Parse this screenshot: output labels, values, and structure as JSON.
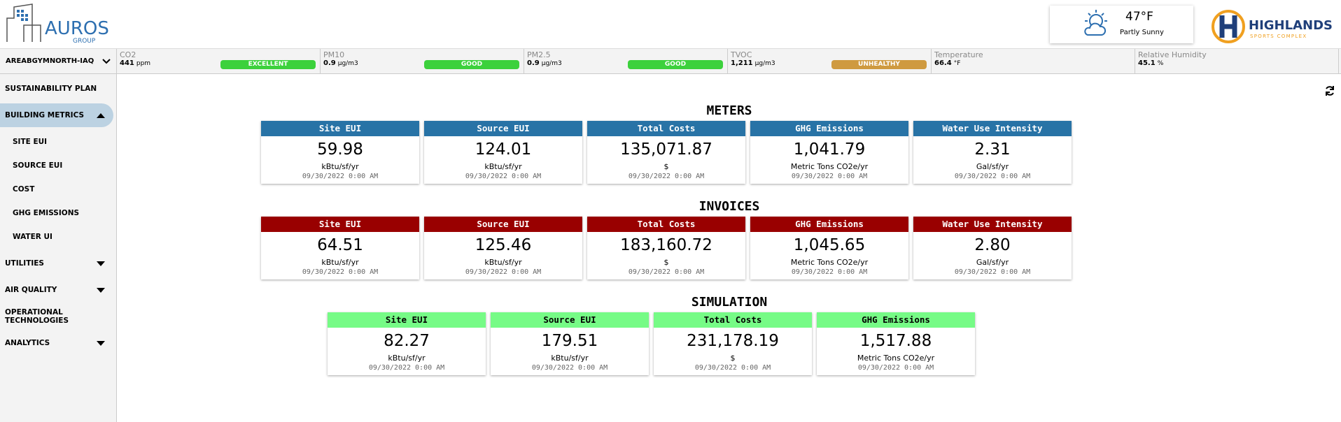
{
  "header": {
    "logo_text": "AUROS",
    "logo_sub": "GROUP",
    "weather": {
      "temp": "47°F",
      "condition": "Partly Sunny"
    },
    "brand": "HIGHLANDS",
    "brand_sub": "SPORTS COMPLEX"
  },
  "sensor_bar": {
    "location": "AREABGYMNORTH-IAQ",
    "sensors": [
      {
        "label": "CO2",
        "value": "441",
        "unit": "ppm",
        "status": "EXCELLENT",
        "status_color": "#3cd13c"
      },
      {
        "label": "PM10",
        "value": "0.9",
        "unit": "µg/m3",
        "status": "GOOD",
        "status_color": "#3cd13c"
      },
      {
        "label": "PM2.5",
        "value": "0.9",
        "unit": "µg/m3",
        "status": "GOOD",
        "status_color": "#3cd13c"
      },
      {
        "label": "TVOC",
        "value": "1,211",
        "unit": "µg/m3",
        "status": "UNHEALTHY",
        "status_color": "#cf9a40"
      },
      {
        "label": "Temperature",
        "value": "66.4",
        "unit": "°F"
      },
      {
        "label": "Relative Humidity",
        "value": "45.1",
        "unit": "%"
      }
    ]
  },
  "sidebar": {
    "items": [
      {
        "label": "SUSTAINABILITY PLAN"
      },
      {
        "label": "BUILDING METRICS",
        "active": true,
        "caret": "up",
        "children": [
          "SITE EUI",
          "SOURCE EUI",
          "COST",
          "GHG EMISSIONS",
          "WATER UI"
        ]
      },
      {
        "label": "UTILITIES",
        "caret": "down"
      },
      {
        "label": "AIR QUALITY",
        "caret": "down"
      },
      {
        "label": "OPERATIONAL TECHNOLOGIES"
      },
      {
        "label": "ANALYTICS",
        "caret": "down"
      }
    ]
  },
  "sections": [
    {
      "title": "METERS",
      "color": "#2873a6",
      "text_color": "#ffffff",
      "cards": [
        {
          "title": "Site EUI",
          "value": "59.98",
          "unit": "kBtu/sf/yr",
          "date": "09/30/2022 0:00 AM"
        },
        {
          "title": "Source EUI",
          "value": "124.01",
          "unit": "kBtu/sf/yr",
          "date": "09/30/2022 0:00 AM"
        },
        {
          "title": "Total Costs",
          "value": "135,071.87",
          "unit": "$",
          "date": "09/30/2022 0:00 AM"
        },
        {
          "title": "GHG Emissions",
          "value": "1,041.79",
          "unit": "Metric Tons CO2e/yr",
          "date": "09/30/2022 0:00 AM"
        },
        {
          "title": "Water Use Intensity",
          "value": "2.31",
          "unit": "Gal/sf/yr",
          "date": "09/30/2022 0:00 AM"
        }
      ]
    },
    {
      "title": "INVOICES",
      "color": "#990000",
      "text_color": "#ffffff",
      "cards": [
        {
          "title": "Site EUI",
          "value": "64.51",
          "unit": "kBtu/sf/yr",
          "date": "09/30/2022 0:00 AM"
        },
        {
          "title": "Source EUI",
          "value": "125.46",
          "unit": "kBtu/sf/yr",
          "date": "09/30/2022 0:00 AM"
        },
        {
          "title": "Total Costs",
          "value": "183,160.72",
          "unit": "$",
          "date": "09/30/2022 0:00 AM"
        },
        {
          "title": "GHG Emissions",
          "value": "1,045.65",
          "unit": "Metric Tons CO2e/yr",
          "date": "09/30/2022 0:00 AM"
        },
        {
          "title": "Water Use Intensity",
          "value": "2.80",
          "unit": "Gal/sf/yr",
          "date": "09/30/2022 0:00 AM"
        }
      ]
    },
    {
      "title": "SIMULATION",
      "color": "#76fb86",
      "text_color": "#000000",
      "cards": [
        {
          "title": "Site EUI",
          "value": "82.27",
          "unit": "kBtu/sf/yr",
          "date": "09/30/2022 0:00 AM"
        },
        {
          "title": "Source EUI",
          "value": "179.51",
          "unit": "kBtu/sf/yr",
          "date": "09/30/2022 0:00 AM"
        },
        {
          "title": "Total Costs",
          "value": "231,178.19",
          "unit": "$",
          "date": "09/30/2022 0:00 AM"
        },
        {
          "title": "GHG Emissions",
          "value": "1,517.88",
          "unit": "Metric Tons CO2e/yr",
          "date": "09/30/2022 0:00 AM"
        }
      ]
    }
  ]
}
